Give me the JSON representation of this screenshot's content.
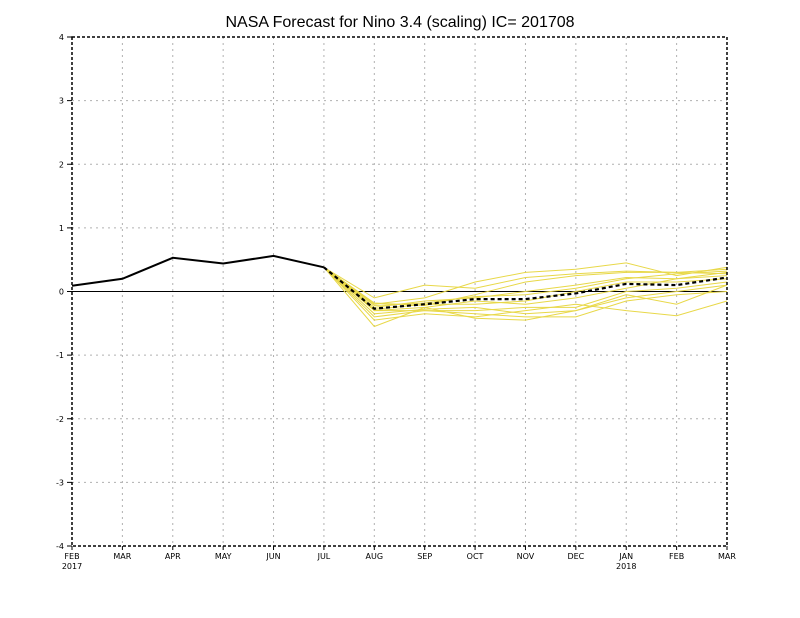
{
  "chart_data": {
    "type": "line",
    "title": "NASA Forecast for Nino 3.4 (scaling) IC= 201708",
    "xlabel": "",
    "ylabel": "",
    "categories": [
      "FEB",
      "MAR",
      "APR",
      "MAY",
      "JUN",
      "JUL",
      "AUG",
      "SEP",
      "OCT",
      "NOV",
      "DEC",
      "JAN",
      "FEB",
      "MAR"
    ],
    "year_labels": [
      "2017",
      "",
      "",
      "",
      "",
      "",
      "",
      "",
      "",
      "",
      "",
      "2018",
      "",
      ""
    ],
    "ylim": [
      -4,
      4
    ],
    "yticks": [
      -4,
      -3,
      -2,
      -1,
      0,
      1,
      2,
      3,
      4
    ],
    "grid": true,
    "colors": {
      "observed": "#000000",
      "members": "#e8d848",
      "ensemble_mean": "#000000",
      "zero_line": "#000000",
      "grid": "#b0b0b0"
    },
    "series": [
      {
        "role": "observed",
        "values": [
          0.09,
          0.2,
          0.53,
          0.44,
          0.56,
          0.38,
          null,
          null,
          null,
          null,
          null,
          null,
          null,
          null
        ]
      },
      {
        "role": "ensemble-mean",
        "style": "dashed",
        "values": [
          null,
          null,
          null,
          null,
          null,
          0.38,
          -0.27,
          -0.2,
          -0.12,
          -0.12,
          -0.03,
          0.12,
          0.1,
          0.22
        ]
      },
      {
        "role": "member",
        "values": [
          null,
          null,
          null,
          null,
          null,
          0.38,
          -0.1,
          0.1,
          0.05,
          0.22,
          0.28,
          0.32,
          0.3,
          0.35
        ]
      },
      {
        "role": "member",
        "values": [
          null,
          null,
          null,
          null,
          null,
          0.38,
          -0.2,
          -0.1,
          0.15,
          0.3,
          0.35,
          0.45,
          0.25,
          0.38
        ]
      },
      {
        "role": "member",
        "values": [
          null,
          null,
          null,
          null,
          null,
          0.38,
          -0.18,
          -0.22,
          -0.05,
          0.15,
          0.25,
          0.3,
          0.3,
          0.28
        ]
      },
      {
        "role": "member",
        "values": [
          null,
          null,
          null,
          null,
          null,
          0.38,
          -0.25,
          -0.15,
          -0.1,
          0.0,
          0.1,
          0.22,
          0.2,
          0.3
        ]
      },
      {
        "role": "member",
        "values": [
          null,
          null,
          null,
          null,
          null,
          0.38,
          -0.28,
          -0.2,
          -0.2,
          -0.15,
          0.0,
          0.15,
          0.15,
          0.2
        ]
      },
      {
        "role": "member",
        "values": [
          null,
          null,
          null,
          null,
          null,
          0.38,
          -0.3,
          -0.25,
          -0.15,
          -0.2,
          -0.1,
          0.05,
          0.2,
          0.25
        ]
      },
      {
        "role": "member",
        "values": [
          null,
          null,
          null,
          null,
          null,
          0.38,
          -0.3,
          -0.3,
          -0.3,
          -0.25,
          -0.25,
          0.0,
          0.05,
          0.15
        ]
      },
      {
        "role": "member",
        "values": [
          null,
          null,
          null,
          null,
          null,
          0.38,
          -0.35,
          -0.28,
          -0.25,
          -0.35,
          -0.3,
          -0.05,
          -0.2,
          0.1
        ]
      },
      {
        "role": "member",
        "values": [
          null,
          null,
          null,
          null,
          null,
          0.38,
          -0.4,
          -0.3,
          -0.35,
          -0.4,
          -0.4,
          -0.15,
          -0.05,
          0.0
        ]
      },
      {
        "role": "member",
        "values": [
          null,
          null,
          null,
          null,
          null,
          0.38,
          -0.45,
          -0.35,
          -0.4,
          -0.3,
          -0.2,
          -0.3,
          -0.38,
          -0.15
        ]
      },
      {
        "role": "member",
        "values": [
          null,
          null,
          null,
          null,
          null,
          0.38,
          -0.55,
          -0.25,
          -0.42,
          -0.45,
          -0.3,
          -0.1,
          0.0,
          0.1
        ]
      },
      {
        "role": "member",
        "values": [
          null,
          null,
          null,
          null,
          null,
          0.38,
          -0.22,
          -0.18,
          -0.08,
          -0.05,
          0.05,
          0.2,
          0.28,
          0.32
        ]
      }
    ]
  }
}
